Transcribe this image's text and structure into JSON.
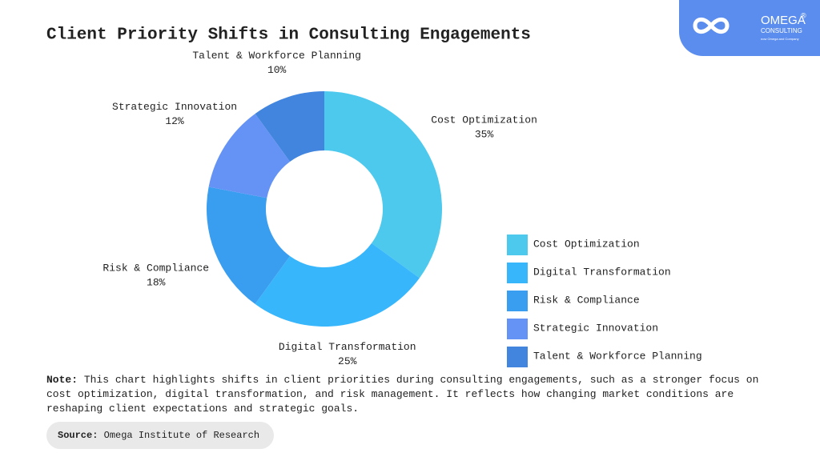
{
  "chart_data": {
    "type": "pie",
    "title": "Client Priority Shifts in Consulting Engagements",
    "categories": [
      "Cost Optimization",
      "Digital Transformation",
      "Risk & Compliance",
      "Strategic Innovation",
      "Talent & Workforce Planning"
    ],
    "values": [
      35,
      25,
      18,
      12,
      10
    ],
    "value_labels": [
      "35%",
      "25%",
      "18%",
      "12%",
      "10%"
    ],
    "colors": [
      "#4dc9ee",
      "#38b6fc",
      "#3a9ef0",
      "#6593f5",
      "#4285de"
    ],
    "legend_position": "lower right"
  },
  "note": {
    "label": "Note:",
    "text": "This chart highlights shifts in client priorities during consulting engagements, such as a stronger focus on cost optimization, digital transformation, and risk management. It reflects how changing market conditions are reshaping client expectations and strategic goals."
  },
  "source": {
    "label": "Source:",
    "text": "Omega Institute of Research"
  },
  "logo": {
    "name": "OMEGA",
    "mark": "®",
    "subtitle": "CONSULTING",
    "tagline": "now Omega and Company"
  }
}
